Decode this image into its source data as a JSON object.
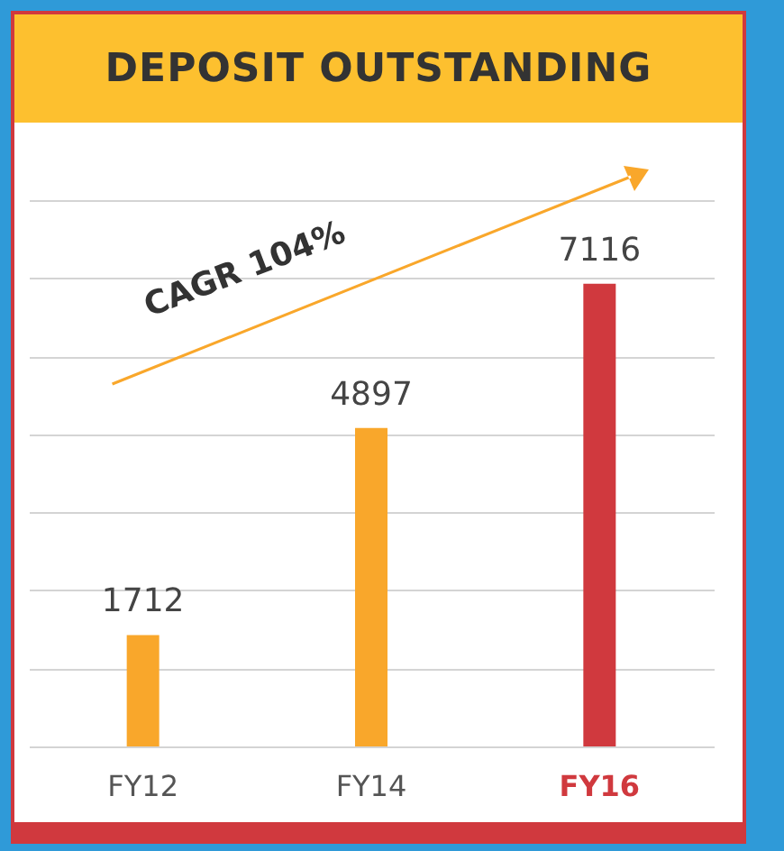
{
  "chart_data": {
    "type": "bar",
    "title": "DEPOSIT OUTSTANDING",
    "categories": [
      "FY12",
      "FY14",
      "FY16"
    ],
    "values": [
      1712,
      4897,
      7116
    ],
    "colors": [
      "#f9a72b",
      "#f9a72b",
      "#d0393e"
    ],
    "ylim": [
      0,
      8400
    ],
    "yticks": [
      {
        "value": 0,
        "label": null
      },
      {
        "value": 1200,
        "label": null
      },
      {
        "value": 2400,
        "label": null
      },
      {
        "value": 3600,
        "label": null
      },
      {
        "value": 4800,
        "label": null
      },
      {
        "value": 6000,
        "label": null
      },
      {
        "value": 7200,
        "label": null
      },
      {
        "value": 8400,
        "label": null
      }
    ],
    "grid": "y",
    "data_labels": true,
    "tick_labels": "x",
    "annotations": [
      "CAGR 104%"
    ]
  }
}
